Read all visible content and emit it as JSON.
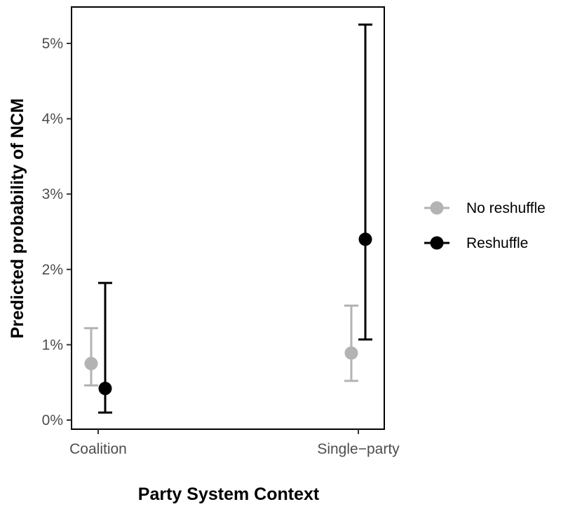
{
  "chart_data": {
    "type": "scatter",
    "xlabel": "Party System Context",
    "ylabel": "Predicted probability of NCM",
    "categories": [
      "Coalition",
      "Single−party"
    ],
    "y_ticks": [
      "0%",
      "1%",
      "2%",
      "3%",
      "4%",
      "5%"
    ],
    "y_tick_values": [
      0,
      1,
      2,
      3,
      4,
      5
    ],
    "ylim": [
      -0.15,
      5.5
    ],
    "grid": false,
    "legend_position": "right",
    "series": [
      {
        "name": "No reshuffle",
        "color": "#b3b3b3",
        "values": [
          0.75,
          0.89
        ],
        "lower": [
          0.46,
          0.52
        ],
        "upper": [
          1.22,
          1.52
        ]
      },
      {
        "name": "Reshuffle",
        "color": "#000000",
        "values": [
          0.42,
          2.4
        ],
        "lower": [
          0.1,
          1.07
        ],
        "upper": [
          1.82,
          5.25
        ]
      }
    ]
  }
}
